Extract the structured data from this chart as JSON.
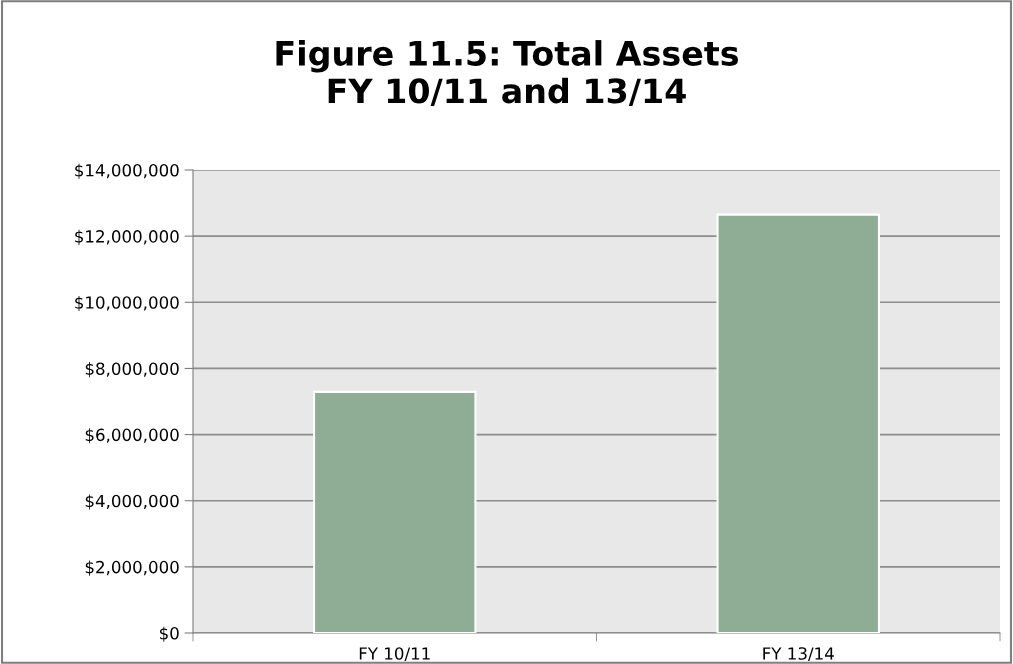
{
  "chart_data": {
    "type": "bar",
    "title": "Figure 11.5: Total Assets\nFY 10/11 and 13/14",
    "categories": [
      "FY 10/11",
      "FY 13/14"
    ],
    "values": [
      7290000,
      12650000
    ],
    "color": "#8fac94",
    "ylim": [
      0,
      14000000
    ],
    "yticks": [
      {
        "value": 0,
        "label": "$0"
      },
      {
        "value": 2000000,
        "label": "$2,000,000"
      },
      {
        "value": 4000000,
        "label": "$4,000,000"
      },
      {
        "value": 6000000,
        "label": "$6,000,000"
      },
      {
        "value": 8000000,
        "label": "$8,000,000"
      },
      {
        "value": 10000000,
        "label": "$10,000,000"
      },
      {
        "value": 12000000,
        "label": "$12,000,000"
      },
      {
        "value": 14000000,
        "label": "$14,000,000"
      }
    ],
    "grid": "y",
    "legend": false
  }
}
